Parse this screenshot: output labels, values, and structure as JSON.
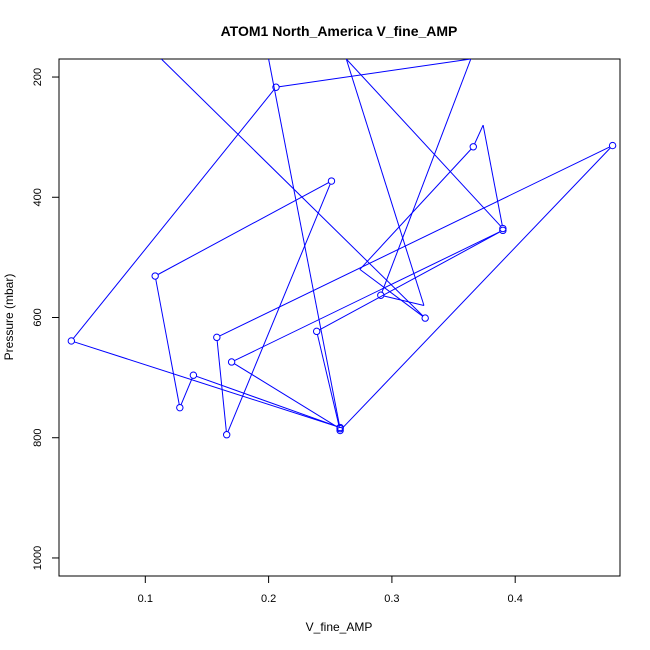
{
  "chart_data": {
    "type": "line",
    "title": "ATOM1 North_America V_fine_AMP",
    "xlabel": "V_fine_AMP",
    "ylabel": "Pressure (mbar)",
    "xlim": [
      0.03,
      0.485
    ],
    "ylim": [
      1030,
      170
    ],
    "y_reversed": true,
    "grid": false,
    "x_ticks": [
      0.1,
      0.2,
      0.3,
      0.4
    ],
    "x_tick_labels": [
      "0.1",
      "0.2",
      "0.3",
      "0.4"
    ],
    "y_ticks": [
      200,
      400,
      600,
      800,
      1000
    ],
    "y_tick_labels": [
      "200",
      "400",
      "600",
      "800",
      "1000"
    ],
    "series": [
      {
        "color": "#0000ff",
        "marker": "open-circle",
        "points": [
          {
            "x": 0.113,
            "y": 170,
            "marker": false
          },
          {
            "x": 0.327,
            "y": 601
          },
          {
            "x": 0.274,
            "y": 520,
            "marker": false
          },
          {
            "x": 0.366,
            "y": 316
          },
          {
            "x": 0.374,
            "y": 280,
            "marker": false
          },
          {
            "x": 0.39,
            "y": 452
          },
          {
            "x": 0.263,
            "y": 170,
            "marker": false
          },
          {
            "x": 0.326,
            "y": 580,
            "marker": false
          },
          {
            "x": 0.291,
            "y": 563
          },
          {
            "x": 0.364,
            "y": 170,
            "marker": false
          },
          {
            "x": 0.206,
            "y": 217
          },
          {
            "x": 0.04,
            "y": 639
          },
          {
            "x": 0.258,
            "y": 783
          },
          {
            "x": 0.139,
            "y": 696
          },
          {
            "x": 0.128,
            "y": 750
          },
          {
            "x": 0.108,
            "y": 531
          },
          {
            "x": 0.251,
            "y": 373
          },
          {
            "x": 0.166,
            "y": 795
          },
          {
            "x": 0.158,
            "y": 633
          },
          {
            "x": 0.479,
            "y": 314
          },
          {
            "x": 0.258,
            "y": 788
          },
          {
            "x": 0.239,
            "y": 623
          },
          {
            "x": 0.39,
            "y": 455
          },
          {
            "x": 0.17,
            "y": 674
          },
          {
            "x": 0.258,
            "y": 785
          },
          {
            "x": 0.2,
            "y": 170,
            "marker": false
          }
        ]
      }
    ]
  }
}
